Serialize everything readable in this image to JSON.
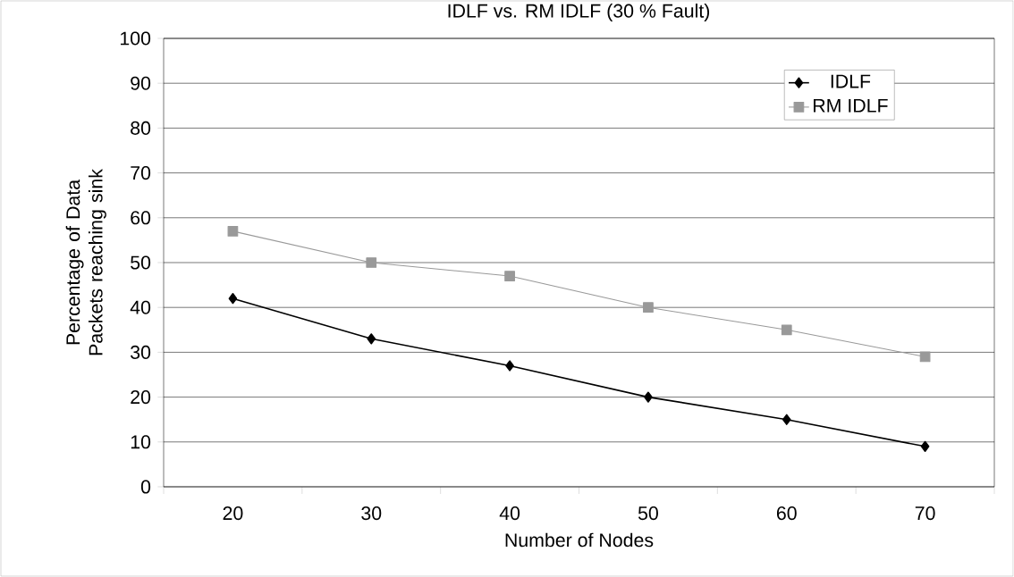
{
  "chart_data": {
    "type": "line",
    "title": "IDLF vs. RM IDLF  (30 % Fault)",
    "xlabel": "Number of Nodes",
    "ylabel": "Percentage of Data Packets reaching sink",
    "categories": [
      "20",
      "30",
      "40",
      "50",
      "60",
      "70"
    ],
    "series": [
      {
        "name": "IDLF",
        "color": "#000000",
        "marker": "diamond",
        "values": [
          42,
          33,
          27,
          20,
          15,
          9
        ]
      },
      {
        "name": "RM IDLF",
        "color": "#999999",
        "marker": "square",
        "values": [
          57,
          50,
          47,
          40,
          35,
          29
        ]
      }
    ],
    "ylim": [
      0,
      100
    ],
    "yticks": [
      0,
      10,
      20,
      30,
      40,
      50,
      60,
      70,
      80,
      90,
      100
    ],
    "grid": "y",
    "legend": "top right"
  }
}
